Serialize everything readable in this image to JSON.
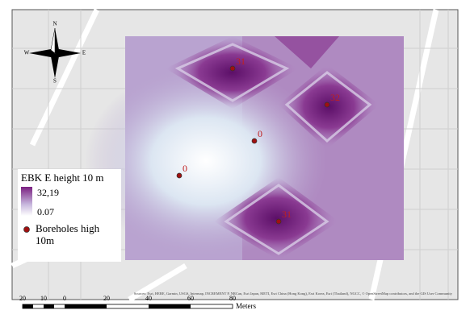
{
  "compass": {
    "north": "N",
    "south": "S",
    "east": "E",
    "west": "W"
  },
  "legend": {
    "title": "EBK E height 10 m",
    "high": "32,19",
    "low": "0.07",
    "points_label": "Boreholes high 10m"
  },
  "points": [
    {
      "label": "31"
    },
    {
      "label": "32"
    },
    {
      "label": "0"
    },
    {
      "label": "0"
    },
    {
      "label": "31"
    }
  ],
  "scale_bar": {
    "labels": [
      "20",
      "10",
      "0",
      "20",
      "40",
      "60",
      "80"
    ],
    "unit": "Meters"
  },
  "attribution": "Sources: Esri, HERE, Garmin, USGS, Intermap, INCREMENT P, NRCan, Esri Japan, METI, Esri China (Hong Kong), Esri Korea, Esri (Thailand), NGCC, © OpenStreetMap contributors, and the GIS User Community"
}
